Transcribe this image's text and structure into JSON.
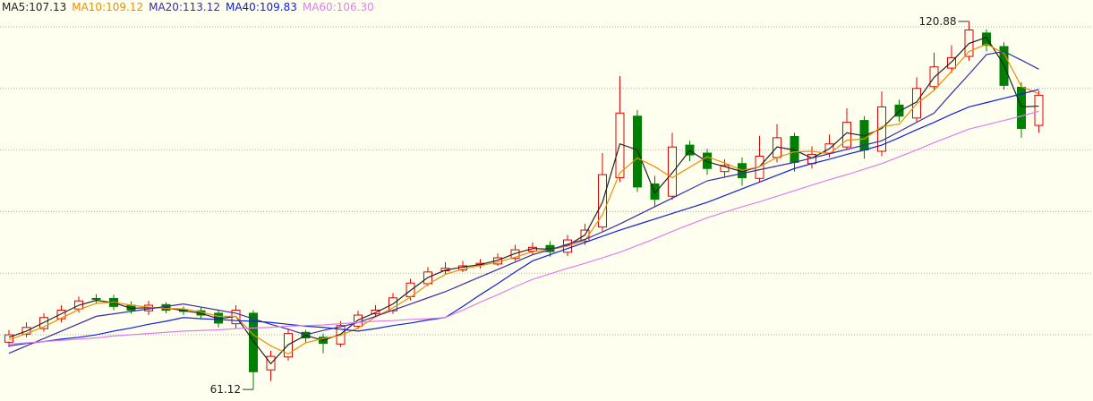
{
  "chart_data": {
    "type": "candlestick",
    "ylim": [
      59.25,
      124.36
    ],
    "yticks": [
      70,
      80,
      90,
      100,
      110,
      120
    ],
    "grid": true,
    "up_color": "#e00000",
    "down_color": "#008000",
    "open": [
      68.8,
      70.1,
      71.0,
      72.6,
      74.2,
      75.9,
      75.9,
      74.8,
      73.9,
      74.9,
      74.1,
      73.9,
      73.5,
      71.8,
      73.5,
      64.3,
      66.4,
      70.4,
      69.6,
      68.5,
      71.4,
      73.4,
      73.9,
      76.2,
      78.3,
      80.4,
      80.5,
      81.4,
      81.5,
      82.4,
      83.6,
      84.5,
      83.4,
      85.2,
      87.5,
      95.5,
      105.5,
      94.5,
      92.5,
      100.8,
      99.5,
      96.5,
      97.8,
      95.4,
      98.8,
      102.2,
      97.8,
      99.5,
      100.5,
      104.8,
      99.8,
      107.3,
      105.2,
      110.3,
      113.3,
      115.2,
      119.0,
      116.8,
      110.2,
      104.0
    ],
    "high": [
      70.8,
      72.0,
      73.5,
      74.8,
      76.2,
      76.6,
      76.5,
      75.4,
      75.5,
      75.3,
      74.6,
      74.4,
      74.0,
      74.8,
      74.0,
      67.4,
      71.0,
      70.8,
      70.2,
      72.2,
      73.9,
      74.8,
      76.8,
      79.1,
      81.0,
      81.8,
      82.0,
      82.3,
      83.2,
      84.6,
      85.0,
      85.2,
      86.2,
      88.0,
      99.5,
      112.0,
      106.5,
      95.8,
      102.8,
      101.5,
      100.2,
      98.5,
      98.8,
      102.3,
      104.2,
      102.8,
      100.6,
      102.5,
      106.8,
      105.5,
      109.5,
      108.2,
      111.8,
      115.8,
      117.0,
      120.88,
      119.6,
      117.5,
      111.0,
      109.6
    ],
    "low": [
      68.0,
      69.6,
      70.5,
      72.0,
      73.6,
      75.0,
      74.0,
      73.4,
      73.2,
      73.5,
      73.2,
      72.6,
      71.2,
      71.0,
      61.12,
      62.5,
      65.8,
      68.8,
      67.0,
      68.0,
      70.9,
      73.0,
      73.4,
      75.6,
      77.9,
      79.8,
      80.2,
      80.8,
      81.2,
      82.0,
      83.0,
      82.7,
      82.8,
      84.6,
      86.8,
      94.8,
      93.2,
      90.8,
      91.9,
      98.2,
      96.0,
      95.7,
      94.2,
      94.8,
      98.0,
      96.5,
      97.0,
      98.8,
      100.0,
      98.6,
      99.0,
      104.6,
      104.6,
      109.6,
      112.5,
      114.5,
      116.0,
      109.8,
      102.0,
      102.8
    ],
    "close": [
      70.0,
      71.2,
      72.8,
      74.0,
      75.5,
      75.8,
      74.6,
      74.0,
      74.8,
      74.0,
      73.8,
      73.2,
      71.9,
      74.0,
      64.0,
      66.5,
      70.2,
      69.5,
      68.6,
      71.5,
      73.2,
      74.0,
      76.0,
      78.4,
      80.2,
      80.8,
      81.2,
      81.6,
      82.5,
      83.8,
      84.2,
      83.5,
      85.4,
      87.0,
      96.0,
      106.0,
      94.0,
      92.0,
      100.5,
      99.2,
      97.0,
      97.5,
      95.5,
      99.0,
      102.0,
      98.0,
      99.3,
      101.0,
      104.5,
      100.0,
      107.0,
      105.5,
      110.0,
      113.5,
      115.0,
      119.5,
      117.0,
      110.5,
      103.5,
      108.9
    ],
    "series": [
      {
        "name": "MA5",
        "legend_label": "MA5:107.13",
        "color": "#222222",
        "values": [
          69.6,
          70.6,
          72.0,
          73.4,
          74.8,
          75.6,
          75.2,
          74.3,
          74.4,
          74.4,
          73.9,
          73.5,
          72.6,
          73.0,
          69.0,
          65.3,
          68.4,
          69.9,
          69.1,
          70.1,
          72.4,
          73.6,
          75.0,
          77.2,
          79.3,
          80.5,
          81.0,
          81.4,
          82.1,
          83.2,
          84.0,
          83.9,
          84.5,
          86.2,
          91.5,
          101.0,
          100.0,
          93.0,
          96.3,
          99.9,
          98.1,
          97.3,
          96.5,
          97.3,
          100.5,
          100.0,
          98.7,
          100.2,
          102.8,
          102.3,
          103.5,
          106.3,
          107.8,
          111.8,
          114.3,
          117.3,
          118.3,
          113.8,
          107.0,
          107.13
        ]
      },
      {
        "name": "MA10",
        "legend_label": "MA10:109.12",
        "color": "#f08c00",
        "values": [
          69.2,
          70.2,
          71.3,
          72.7,
          74.1,
          75.1,
          75.3,
          74.8,
          74.5,
          74.3,
          74.2,
          73.7,
          73.0,
          73.0,
          70.0,
          68.2,
          66.9,
          68.7,
          69.4,
          69.9,
          71.1,
          72.9,
          74.4,
          76.1,
          78.2,
          79.8,
          80.7,
          81.2,
          81.8,
          82.6,
          83.5,
          83.8,
          84.4,
          85.3,
          89.5,
          96.3,
          98.7,
          97.3,
          95.5,
          97.2,
          98.9,
          97.9,
          96.7,
          97.3,
          98.8,
          99.7,
          99.8,
          99.4,
          101.6,
          101.8,
          103.8,
          104.2,
          107.5,
          109.7,
          112.8,
          116.0,
          117.2,
          115.7,
          110.3,
          109.12
        ]
      },
      {
        "name": "MA20",
        "legend_label": "MA20:113.12",
        "color": "#3a2ca8",
        "values": [
          67.0,
          68.2,
          69.4,
          70.6,
          71.8,
          73.0,
          73.4,
          73.8,
          74.2,
          74.6,
          75.0,
          74.5,
          74.0,
          73.5,
          72.6,
          71.7,
          70.9,
          70.0,
          70.7,
          71.3,
          72.0,
          73.0,
          74.0,
          75.0,
          76.0,
          77.0,
          78.2,
          79.4,
          80.6,
          81.8,
          83.0,
          83.8,
          84.7,
          85.5,
          86.7,
          88.0,
          89.4,
          90.8,
          92.2,
          93.6,
          95.0,
          95.6,
          96.2,
          96.8,
          97.4,
          98.0,
          98.7,
          99.4,
          100.1,
          100.8,
          101.5,
          103.0,
          104.5,
          106.0,
          109.2,
          112.3,
          115.5,
          116.0,
          114.6,
          113.12
        ]
      },
      {
        "name": "MA40",
        "legend_label": "MA40:109.83",
        "color": "#1020e0",
        "values": [
          68.2,
          68.6,
          68.9,
          69.3,
          69.6,
          70.0,
          70.6,
          71.1,
          71.7,
          72.2,
          72.8,
          72.6,
          72.5,
          72.3,
          72.2,
          72.0,
          71.7,
          71.4,
          71.2,
          70.9,
          70.6,
          71.0,
          71.5,
          71.9,
          72.4,
          72.8,
          74.6,
          76.5,
          78.3,
          80.2,
          82.0,
          83.0,
          84.0,
          85.0,
          86.0,
          87.0,
          87.9,
          88.8,
          89.7,
          90.6,
          91.5,
          92.6,
          93.7,
          94.8,
          95.9,
          97.0,
          97.8,
          98.5,
          99.3,
          100.0,
          100.8,
          102.0,
          103.3,
          104.5,
          105.8,
          107.0,
          107.7,
          108.4,
          109.1,
          109.83
        ]
      },
      {
        "name": "MA60",
        "legend_label": "MA60:106.30",
        "color": "#e07ef0",
        "values": [
          68.5,
          68.7,
          68.9,
          69.1,
          69.3,
          69.5,
          69.8,
          70.0,
          70.2,
          70.4,
          70.6,
          70.7,
          70.8,
          71.0,
          71.1,
          71.2,
          71.4,
          71.5,
          71.6,
          71.8,
          72.0,
          72.2,
          72.3,
          72.5,
          72.6,
          72.8,
          74.0,
          75.3,
          76.5,
          77.8,
          79.0,
          79.9,
          80.8,
          81.6,
          82.5,
          83.4,
          84.5,
          85.6,
          86.8,
          87.9,
          89.0,
          89.9,
          90.8,
          91.6,
          92.5,
          93.4,
          94.3,
          95.2,
          96.0,
          96.9,
          97.8,
          98.9,
          100.0,
          101.2,
          102.3,
          103.4,
          104.1,
          104.8,
          105.5,
          106.3
        ]
      }
    ],
    "annotations": [
      120.88,
      61.12
    ]
  }
}
